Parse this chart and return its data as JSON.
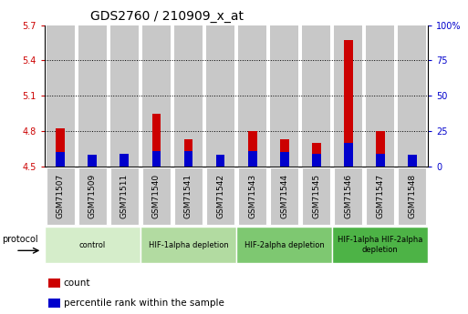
{
  "title": "GDS2760 / 210909_x_at",
  "samples": [
    "GSM71507",
    "GSM71509",
    "GSM71511",
    "GSM71540",
    "GSM71541",
    "GSM71542",
    "GSM71543",
    "GSM71544",
    "GSM71545",
    "GSM71546",
    "GSM71547",
    "GSM71548"
  ],
  "count_values": [
    4.82,
    4.53,
    4.55,
    4.95,
    4.73,
    4.51,
    4.8,
    4.73,
    4.7,
    5.57,
    4.8,
    4.52
  ],
  "percentile_values": [
    4.62,
    4.6,
    4.61,
    4.63,
    4.63,
    4.6,
    4.63,
    4.62,
    4.61,
    4.7,
    4.61,
    4.6
  ],
  "ymin": 4.5,
  "ymax": 5.7,
  "yticks_left": [
    4.5,
    4.8,
    5.1,
    5.4,
    5.7
  ],
  "yticks_right": [
    0,
    25,
    50,
    75,
    100
  ],
  "grid_lines": [
    4.8,
    5.1,
    5.4
  ],
  "protocol_groups": [
    {
      "label": "control",
      "start": 0,
      "end": 3,
      "color": "#d5edca"
    },
    {
      "label": "HIF-1alpha depletion",
      "start": 3,
      "end": 6,
      "color": "#b2dba1"
    },
    {
      "label": "HIF-2alpha depletion",
      "start": 6,
      "end": 9,
      "color": "#7ec871"
    },
    {
      "label": "HIF-1alpha HIF-2alpha\ndepletion",
      "start": 9,
      "end": 12,
      "color": "#4db346"
    }
  ],
  "count_color": "#cc0000",
  "percentile_color": "#0000cc",
  "bar_bg_color": "#c8c8c8",
  "legend_count": "count",
  "legend_pct": "percentile rank within the sample",
  "title_fontsize": 10,
  "label_fontsize": 6.5,
  "tick_fontsize": 7,
  "protocol_label": "protocol"
}
